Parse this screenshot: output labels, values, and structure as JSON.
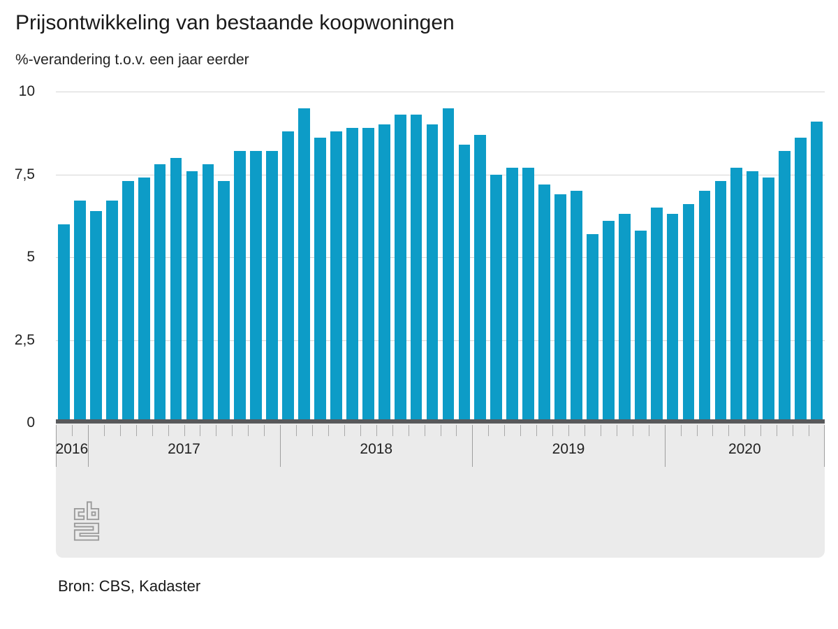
{
  "header": {
    "title": "Prijsontwikkeling van bestaande koopwoningen",
    "subtitle": "%-verandering t.o.v. een jaar eerder"
  },
  "y_axis": {
    "labels": [
      "10",
      "7,5",
      "5",
      "2,5",
      "0"
    ]
  },
  "x_axis": {
    "years": [
      {
        "label": "2016",
        "months": 2
      },
      {
        "label": "2017",
        "months": 12
      },
      {
        "label": "2018",
        "months": 12
      },
      {
        "label": "2019",
        "months": 12
      },
      {
        "label": "2020",
        "months": 10
      }
    ]
  },
  "source": {
    "text": "Bron: CBS, Kadaster"
  },
  "logo": {
    "name": "cbs-logo"
  },
  "colors": {
    "bar": "#0d9cc7",
    "baseline": "#58595b",
    "gridline": "#d5d5d5",
    "axis_band": "#ebebeb",
    "tick": "#a9a9a9",
    "logo": "#9b9b9b",
    "text": "#1a1a1a"
  },
  "chart_data": {
    "type": "bar",
    "title": "Prijsontwikkeling van bestaande koopwoningen",
    "ylabel": "%-verandering t.o.v. een jaar eerder",
    "x": [
      "2016-11",
      "2016-12",
      "2017-01",
      "2017-02",
      "2017-03",
      "2017-04",
      "2017-05",
      "2017-06",
      "2017-07",
      "2017-08",
      "2017-09",
      "2017-10",
      "2017-11",
      "2017-12",
      "2018-01",
      "2018-02",
      "2018-03",
      "2018-04",
      "2018-05",
      "2018-06",
      "2018-07",
      "2018-08",
      "2018-09",
      "2018-10",
      "2018-11",
      "2018-12",
      "2019-01",
      "2019-02",
      "2019-03",
      "2019-04",
      "2019-05",
      "2019-06",
      "2019-07",
      "2019-08",
      "2019-09",
      "2019-10",
      "2019-11",
      "2019-12",
      "2020-01",
      "2020-02",
      "2020-03",
      "2020-04",
      "2020-05",
      "2020-06",
      "2020-07",
      "2020-08",
      "2020-09",
      "2020-10"
    ],
    "values": [
      6.0,
      6.7,
      6.4,
      6.7,
      7.3,
      7.4,
      7.8,
      8.0,
      7.6,
      7.8,
      7.3,
      8.2,
      8.2,
      8.2,
      8.8,
      9.5,
      8.6,
      8.8,
      8.9,
      8.9,
      9.0,
      9.3,
      9.3,
      9.0,
      9.5,
      8.4,
      8.7,
      7.5,
      7.7,
      7.7,
      7.2,
      6.9,
      7.0,
      5.7,
      6.1,
      6.3,
      5.8,
      6.5,
      6.3,
      6.6,
      7.0,
      7.3,
      7.7,
      7.6,
      7.4,
      8.2,
      8.6,
      9.1
    ],
    "ylim": [
      0,
      10
    ],
    "yticks": [
      0,
      2.5,
      5,
      7.5,
      10
    ],
    "xtick_labels": [
      "2016",
      "2017",
      "2018",
      "2019",
      "2020"
    ],
    "bar_color": "#0d9cc7",
    "grid": true,
    "legend": null
  }
}
